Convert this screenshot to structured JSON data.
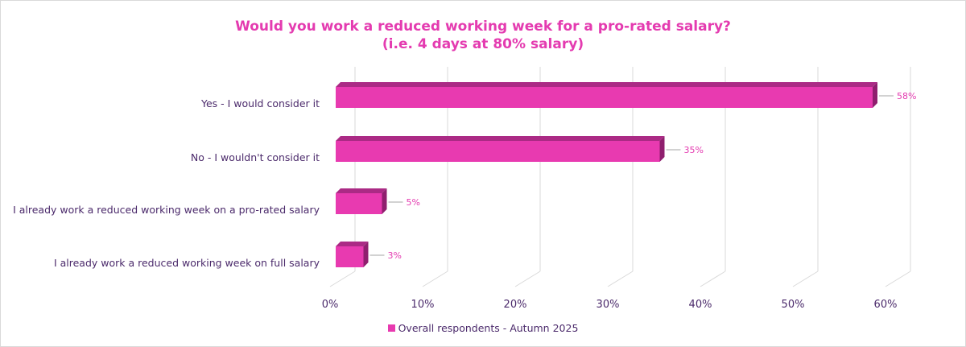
{
  "colors": {
    "bar_front": "#e83ab0",
    "bar_top": "#ab2a85",
    "bar_side": "#8f1f6e",
    "text": "#4b2a6b",
    "accent": "#e43bb0",
    "grid": "#d9d9d9"
  },
  "chart_data": {
    "type": "bar",
    "orientation": "horizontal",
    "style": "3d",
    "title": "Would you work a reduced working week for a pro-rated salary?",
    "subtitle": "(i.e. 4 days at 80% salary)",
    "categories": [
      "Yes - I would consider it",
      "No - I wouldn't consider it",
      "I already work a reduced working week on a pro-rated salary",
      "I already work a reduced working week on full salary"
    ],
    "series": [
      {
        "name": "Overall respondents - Autumn 2025",
        "values": [
          58,
          35,
          5,
          3
        ]
      }
    ],
    "data_labels": [
      "58%",
      "35%",
      "5%",
      "3%"
    ],
    "xlim": [
      0,
      60
    ],
    "ticks": [
      0,
      10,
      20,
      30,
      40,
      50,
      60
    ],
    "tick_labels": [
      "0%",
      "10%",
      "20%",
      "30%",
      "40%",
      "50%",
      "60%"
    ],
    "grid": true,
    "legend_position": "bottom"
  }
}
